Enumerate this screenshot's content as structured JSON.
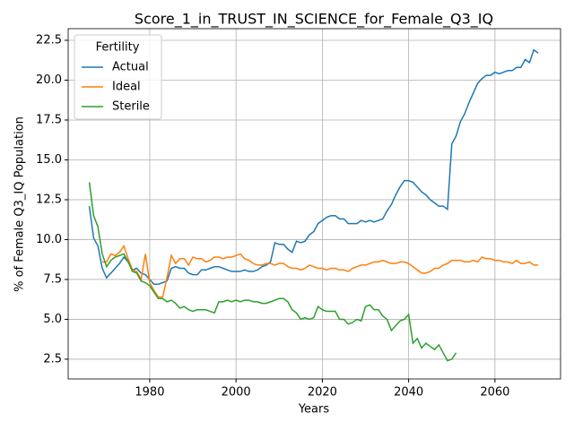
{
  "chart_data": {
    "type": "line",
    "title": "Score_1_in_TRUST_IN_SCIENCE_for_Female_Q3_IQ",
    "xlabel": "Years",
    "ylabel": "% of Female Q3_IQ Population",
    "legend_title": "Fertility",
    "legend_loc": "upper left",
    "grid": true,
    "xlim": [
      1961.1,
      2075.2
    ],
    "ylim": [
      1.26,
      23.23
    ],
    "xticks": [
      1980,
      2000,
      2020,
      2040,
      2060
    ],
    "yticks": [
      2.5,
      5.0,
      7.5,
      10.0,
      12.5,
      15.0,
      17.5,
      20.0,
      22.5
    ],
    "x": [
      1966,
      1967,
      1968,
      1969,
      1970,
      1971,
      1972,
      1973,
      1974,
      1975,
      1976,
      1977,
      1978,
      1979,
      1980,
      1981,
      1982,
      1983,
      1984,
      1985,
      1986,
      1987,
      1988,
      1989,
      1990,
      1991,
      1992,
      1993,
      1994,
      1995,
      1996,
      1997,
      1998,
      1999,
      2000,
      2001,
      2002,
      2003,
      2004,
      2005,
      2006,
      2007,
      2008,
      2009,
      2010,
      2011,
      2012,
      2013,
      2014,
      2015,
      2016,
      2017,
      2018,
      2019,
      2020,
      2021,
      2022,
      2023,
      2024,
      2025,
      2026,
      2027,
      2028,
      2029,
      2030,
      2031,
      2032,
      2033,
      2034,
      2035,
      2036,
      2037,
      2038,
      2039,
      2040,
      2041,
      2042,
      2043,
      2044,
      2045,
      2046,
      2047,
      2048,
      2049,
      2050,
      2051,
      2052,
      2053,
      2054,
      2055,
      2056,
      2057,
      2058,
      2059,
      2060,
      2061,
      2062,
      2063,
      2064,
      2065,
      2066,
      2067,
      2068,
      2069,
      2070
    ],
    "series": [
      {
        "name": "Actual",
        "color": "#1f77b4",
        "values": [
          12.1,
          10.1,
          9.6,
          8.2,
          7.6,
          7.9,
          8.2,
          8.5,
          8.9,
          8.6,
          8.1,
          8.2,
          7.9,
          7.8,
          7.5,
          7.2,
          7.2,
          7.3,
          7.4,
          8.2,
          8.3,
          8.2,
          8.2,
          7.9,
          7.8,
          7.8,
          8.1,
          8.1,
          8.2,
          8.3,
          8.3,
          8.2,
          8.1,
          8.0,
          8.0,
          8.0,
          8.1,
          8.0,
          8.0,
          8.1,
          8.3,
          8.4,
          8.6,
          9.8,
          9.7,
          9.7,
          9.4,
          9.2,
          9.9,
          9.8,
          9.9,
          10.3,
          10.5,
          11.0,
          11.2,
          11.4,
          11.5,
          11.5,
          11.3,
          11.3,
          11.0,
          11.0,
          11.0,
          11.2,
          11.1,
          11.2,
          11.1,
          11.2,
          11.3,
          11.8,
          12.2,
          12.8,
          13.3,
          13.7,
          13.7,
          13.6,
          13.3,
          13.0,
          12.8,
          12.5,
          12.3,
          12.1,
          12.1,
          11.9,
          16.0,
          16.5,
          17.4,
          17.9,
          18.6,
          19.2,
          19.8,
          20.1,
          20.3,
          20.3,
          20.5,
          20.4,
          20.5,
          20.6,
          20.6,
          20.8,
          20.8,
          21.3,
          21.1,
          21.9,
          21.7
        ]
      },
      {
        "name": "Ideal",
        "color": "#ff7f0e",
        "values": [
          null,
          null,
          null,
          8.6,
          8.6,
          9.1,
          9.0,
          9.2,
          9.6,
          8.8,
          8.1,
          8.0,
          7.5,
          9.1,
          7.3,
          6.8,
          6.4,
          6.4,
          7.6,
          9.0,
          8.5,
          8.8,
          8.8,
          8.4,
          8.9,
          8.8,
          8.8,
          8.6,
          8.7,
          8.9,
          8.9,
          8.8,
          8.9,
          8.9,
          9.0,
          9.1,
          8.8,
          8.7,
          8.5,
          8.4,
          8.4,
          8.5,
          8.5,
          8.4,
          8.5,
          8.5,
          8.3,
          8.2,
          8.2,
          8.1,
          8.2,
          8.4,
          8.3,
          8.2,
          8.2,
          8.1,
          8.2,
          8.2,
          8.1,
          8.1,
          8.0,
          8.2,
          8.3,
          8.4,
          8.4,
          8.5,
          8.6,
          8.6,
          8.7,
          8.6,
          8.5,
          8.5,
          8.6,
          8.6,
          8.5,
          8.3,
          8.1,
          7.9,
          7.9,
          8.0,
          8.2,
          8.2,
          8.4,
          8.5,
          8.7,
          8.7,
          8.7,
          8.6,
          8.6,
          8.7,
          8.6,
          8.9,
          8.8,
          8.8,
          8.7,
          8.7,
          8.6,
          8.6,
          8.5,
          8.7,
          8.5,
          8.5,
          8.6,
          8.4,
          8.4
        ]
      },
      {
        "name": "Sterile",
        "color": "#2ca02c",
        "values": [
          13.6,
          11.5,
          10.8,
          9.1,
          8.3,
          8.7,
          8.9,
          9.0,
          9.1,
          8.6,
          8.0,
          7.9,
          7.4,
          7.3,
          7.1,
          6.7,
          6.3,
          6.3,
          6.1,
          6.2,
          6.0,
          5.7,
          5.8,
          5.6,
          5.5,
          5.6,
          5.6,
          5.6,
          5.5,
          5.4,
          6.1,
          6.1,
          6.2,
          6.1,
          6.2,
          6.1,
          6.2,
          6.2,
          6.1,
          6.1,
          6.0,
          6.0,
          6.1,
          6.2,
          6.3,
          6.3,
          6.1,
          5.6,
          5.4,
          5.0,
          5.1,
          5.0,
          5.1,
          5.8,
          5.6,
          5.5,
          5.5,
          5.5,
          5.0,
          5.0,
          4.7,
          4.8,
          5.0,
          4.9,
          5.8,
          5.9,
          5.6,
          5.6,
          5.2,
          5.0,
          4.3,
          4.6,
          4.9,
          5.0,
          5.3,
          3.5,
          3.8,
          3.2,
          3.5,
          3.3,
          3.1,
          3.4,
          2.9,
          2.4,
          2.5,
          2.9,
          null,
          null,
          null,
          null,
          null,
          null,
          null,
          null,
          null,
          null,
          null,
          null,
          null,
          null,
          null,
          null,
          null,
          null,
          null
        ]
      }
    ]
  }
}
